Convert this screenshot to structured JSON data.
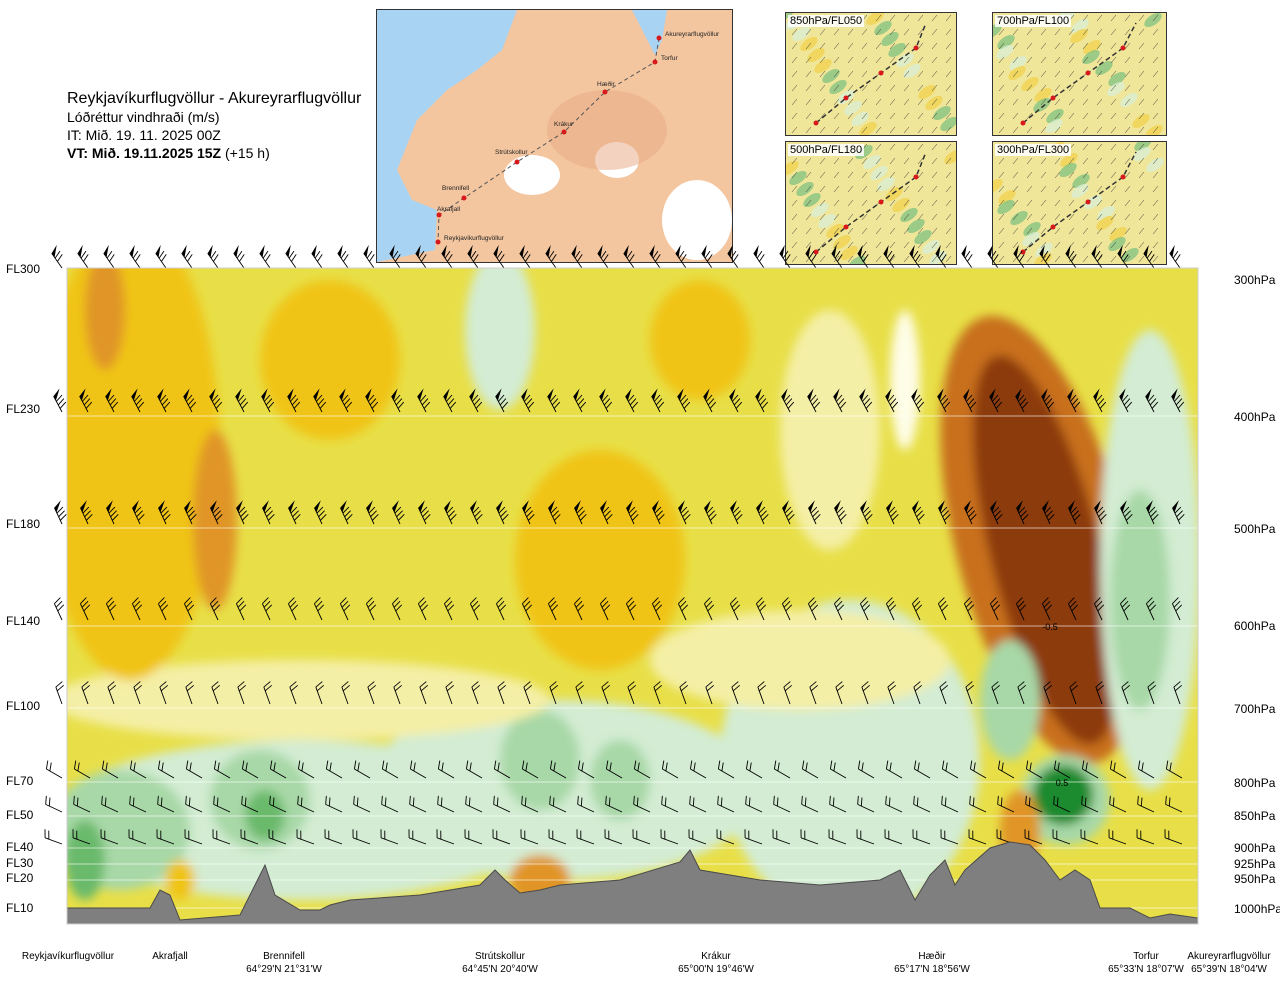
{
  "header": {
    "route": "Reykjavíkurflugvöllur - Akureyrarflugvöllur",
    "parameter": "Lóðréttur vindhraði (m/s)",
    "issue_time": "IT: Mið. 19. 11. 2025 00Z",
    "valid_time": "VT: Mið. 19.11.2025 15Z",
    "lead": "(+15 h)"
  },
  "route_map": {
    "waypoints": [
      "Akureyrarflugvöllur",
      "Torfur",
      "Hæðir",
      "Krákur",
      "Strútskollur",
      "Brennifell",
      "Akrafjall",
      "Reykjavíkurflugvöllur"
    ],
    "colors": {
      "sea": "#a9d3f2",
      "land": "#f3c6a0",
      "route": "#555555",
      "point": "#d7191c"
    }
  },
  "thumbnails": [
    {
      "label": "850hPa/FL050"
    },
    {
      "label": "700hPa/FL100"
    },
    {
      "label": "500hPa/FL180"
    },
    {
      "label": "300hPa/FL300"
    }
  ],
  "levels": [
    {
      "fl": "FL300",
      "hpa": "300hPa"
    },
    {
      "fl": "FL230",
      "hpa": "400hPa"
    },
    {
      "fl": "FL180",
      "hpa": "500hPa"
    },
    {
      "fl": "FL140",
      "hpa": "600hPa"
    },
    {
      "fl": "FL100",
      "hpa": "700hPa"
    },
    {
      "fl": "FL70",
      "hpa": "800hPa"
    },
    {
      "fl": "FL50",
      "hpa": "850hPa"
    },
    {
      "fl": "FL40",
      "hpa": "900hPa"
    },
    {
      "fl": "FL30",
      "hpa": "925hPa"
    },
    {
      "fl": "FL20",
      "hpa": "950hPa"
    },
    {
      "fl": "FL10",
      "hpa": "1000hPa"
    }
  ],
  "locations": [
    {
      "name": "Reykjavíkurflugvöllur",
      "coord": ""
    },
    {
      "name": "Akrafjall",
      "coord": ""
    },
    {
      "name": "Brennifell",
      "coord": "64°29'N 21°31'W"
    },
    {
      "name": "Strútskollur",
      "coord": "64°45'N 20°40'W"
    },
    {
      "name": "Krákur",
      "coord": "65°00'N 19°46'W"
    },
    {
      "name": "Hæðir",
      "coord": "65°17'N 18°56'W"
    },
    {
      "name": "Torfur",
      "coord": "65°33'N 18°07'W"
    },
    {
      "name": "Akureyrarflugvöllur",
      "coord": "65°39'N 18°04'W"
    }
  ],
  "chart_data": {
    "type": "heatmap",
    "variable": "Lóðréttur vindhraði (m/s)",
    "y_levels_hpa": [
      300,
      400,
      500,
      600,
      700,
      800,
      850,
      900,
      925,
      950,
      1000
    ],
    "annotations": [
      {
        "text": "-0.5",
        "location": "between Hæðir and Torfur",
        "level_hpa": 600
      },
      {
        "text": "0.5",
        "location": "between Hæðir and Torfur",
        "level_hpa": 800
      }
    ],
    "colors": {
      "strong_down": "#8c3a0b",
      "moderate_down": "#c8701a",
      "down": "#e09525",
      "weak_down": "#f0c419",
      "slight_down": "#e8df48",
      "near_zero_down": "#f4efa6",
      "near_zero_up": "#fefde7",
      "slight_up": "#d3ecd3",
      "up": "#a8d8a7",
      "moderate_up": "#6bba6c",
      "strong_up": "#1f8a2e",
      "terrain": "#7f7f7f"
    }
  }
}
